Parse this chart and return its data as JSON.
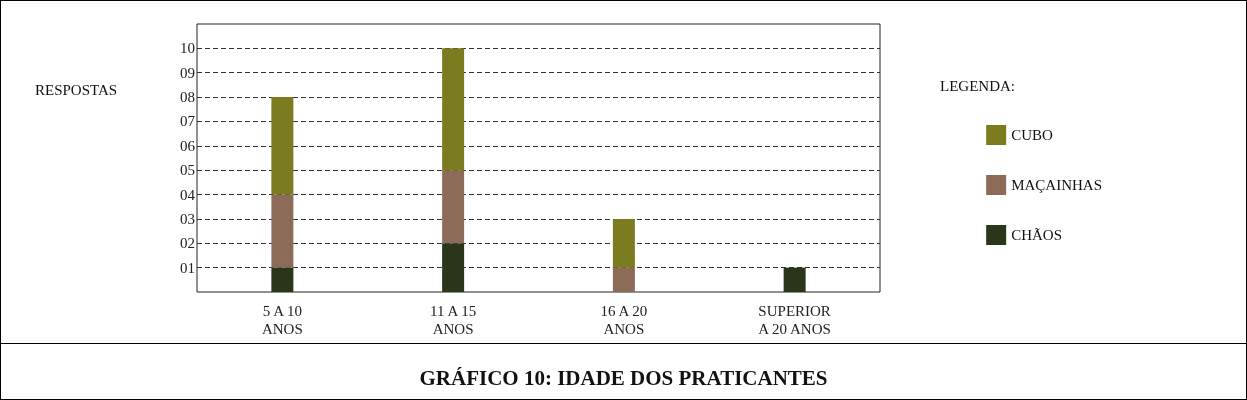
{
  "chart_data": {
    "type": "bar",
    "title": "GRÁFICO 10: IDADE DOS PRATICANTES",
    "ylabel": "RESPOSTAS",
    "legend_title": "LEGENDA:",
    "categories": [
      "5 A 10\nANOS",
      "11 A 15\nANOS",
      "16 A 20\nANOS",
      "SUPERIOR\nA 20 ANOS"
    ],
    "stacked": true,
    "series": [
      {
        "name": "CHÃOS",
        "color": "#2b3519",
        "values": [
          1,
          2,
          0,
          1
        ]
      },
      {
        "name": "MAÇAINHAS",
        "color": "#8c6c58",
        "values": [
          3,
          3,
          1,
          0
        ]
      },
      {
        "name": "CUBO",
        "color": "#7b7b1f",
        "values": [
          4,
          5,
          2,
          0
        ]
      }
    ],
    "ylim": [
      0,
      11
    ],
    "yticks": [
      {
        "value": 1,
        "label": "01"
      },
      {
        "value": 2,
        "label": "02"
      },
      {
        "value": 3,
        "label": "03"
      },
      {
        "value": 4,
        "label": "04"
      },
      {
        "value": 5,
        "label": "05"
      },
      {
        "value": 6,
        "label": "06"
      },
      {
        "value": 7,
        "label": "07"
      },
      {
        "value": 8,
        "label": "08"
      },
      {
        "value": 9,
        "label": "09"
      },
      10
    ],
    "grid": "y",
    "legend": "right"
  }
}
